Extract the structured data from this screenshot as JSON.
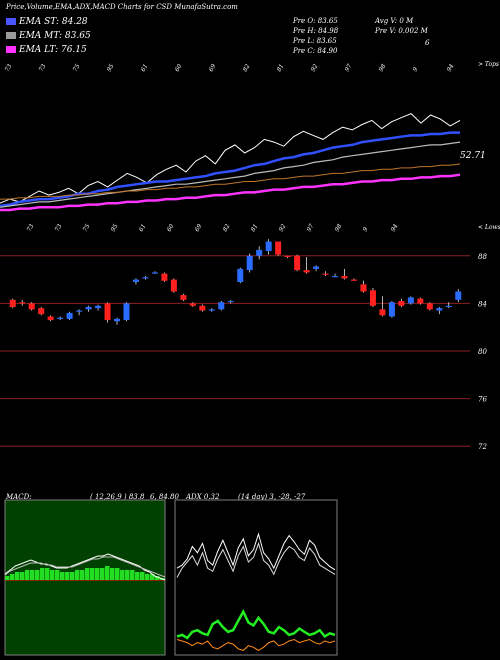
{
  "header": {
    "title": "Price,Volume,EMA,ADX,MACD Charts for CSD MunafaSutra.com",
    "ema_st": "EMA ST: 84.28",
    "ema_mt": "EMA MT: 83.65",
    "ema_lt": "EMA LT: 76.15",
    "pre_open": "Pre  O: 83.65",
    "pre_high": "Pre  H: 84.98",
    "pre_low": "Pre  L: 83.65",
    "pre_close": "Pre  C: 84.90",
    "avg_volume": "Avg V: 0  M",
    "pre_volume": "Pre  V: 0.002  M",
    "stray_mark": "6",
    "colors": {
      "ema_st": "#4a55ff",
      "ema_mt": "#9a9a9a",
      "ema_lt": "#ff33ff"
    }
  },
  "macd_panel": {
    "label": "MACD:",
    "params": "( 12,26,9 ) 83.8",
    "values": "6, 84.80",
    "adx_overlap": "ADX 0.32"
  },
  "adx_panel": {
    "label": "(14  day) 3,  -28,  -27"
  },
  "chart_data": [
    {
      "type": "line",
      "panel": "ema",
      "tag_top_right": "> Tops",
      "last_value_label": "52.71",
      "x_labels": [
        "73",
        "73",
        "75",
        "95",
        "61",
        "60",
        "69",
        "82",
        "81",
        "92",
        "97",
        "98",
        "9",
        "94"
      ],
      "series": [
        {
          "name": "EMA ST",
          "values": [
            3,
            4,
            6,
            7,
            8,
            8,
            9,
            10,
            12,
            12,
            14,
            15,
            17,
            18,
            19,
            20,
            21,
            21,
            22,
            23,
            24,
            25,
            27,
            28,
            29,
            31,
            33,
            34,
            36,
            38,
            39,
            41,
            42,
            44,
            46,
            47,
            48,
            50,
            51,
            52,
            53,
            54,
            55,
            55,
            56,
            56,
            57,
            57
          ]
        },
        {
          "name": "EMA MT",
          "values": [
            2,
            3,
            4,
            5,
            6,
            6,
            7,
            8,
            9,
            10,
            11,
            12,
            13,
            14,
            15,
            16,
            17,
            18,
            19,
            19,
            20,
            21,
            22,
            23,
            24,
            25,
            27,
            28,
            29,
            31,
            32,
            33,
            35,
            36,
            37,
            39,
            40,
            41,
            42,
            43,
            44,
            45,
            46,
            47,
            48,
            48,
            49,
            50
          ]
        },
        {
          "name": "EMA LT",
          "values": [
            0,
            0,
            1,
            1,
            2,
            2,
            2,
            3,
            3,
            4,
            4,
            5,
            5,
            6,
            6,
            7,
            7,
            8,
            8,
            9,
            9,
            10,
            11,
            11,
            12,
            13,
            13,
            14,
            15,
            15,
            16,
            17,
            17,
            18,
            19,
            19,
            20,
            21,
            21,
            22,
            22,
            23,
            23,
            24,
            24,
            25,
            25,
            26
          ]
        }
      ],
      "price": [
        5,
        8,
        6,
        10,
        14,
        11,
        13,
        16,
        12,
        18,
        21,
        17,
        22,
        27,
        24,
        20,
        26,
        30,
        33,
        28,
        36,
        40,
        34,
        44,
        48,
        42,
        46,
        52,
        50,
        47,
        54,
        58,
        55,
        52,
        57,
        61,
        59,
        63,
        66,
        60,
        65,
        68,
        71,
        64,
        70,
        67,
        62,
        66
      ]
    },
    {
      "type": "bar",
      "subtype": "candlestick",
      "panel": "price",
      "tag_top_right": "< Lows",
      "y_ticks": [
        88,
        84,
        80,
        76,
        72
      ],
      "ylim": [
        70,
        90
      ],
      "x_labels": [
        "73",
        "73",
        "75",
        "95",
        "61",
        "60",
        "69",
        "82",
        "81",
        "92",
        "97",
        "98",
        "9",
        "94"
      ],
      "candles": [
        {
          "o": 84.3,
          "h": 84.4,
          "l": 83.6,
          "c": 83.7
        },
        {
          "o": 84.1,
          "h": 84.3,
          "l": 83.8,
          "c": 84.0
        },
        {
          "o": 84.0,
          "h": 84.1,
          "l": 83.4,
          "c": 83.5
        },
        {
          "o": 83.6,
          "h": 83.7,
          "l": 83.0,
          "c": 83.1
        },
        {
          "o": 82.9,
          "h": 83.0,
          "l": 82.5,
          "c": 82.6
        },
        {
          "o": 82.7,
          "h": 82.9,
          "l": 82.6,
          "c": 82.8
        },
        {
          "o": 82.7,
          "h": 83.3,
          "l": 82.6,
          "c": 83.2
        },
        {
          "o": 83.3,
          "h": 83.5,
          "l": 83.0,
          "c": 83.4
        },
        {
          "o": 83.5,
          "h": 83.8,
          "l": 83.3,
          "c": 83.7
        },
        {
          "o": 83.6,
          "h": 83.9,
          "l": 83.4,
          "c": 83.8
        },
        {
          "o": 84.0,
          "h": 84.1,
          "l": 82.4,
          "c": 82.6
        },
        {
          "o": 82.5,
          "h": 82.8,
          "l": 82.2,
          "c": 82.7
        },
        {
          "o": 82.6,
          "h": 84.1,
          "l": 82.5,
          "c": 84.0
        },
        {
          "o": 85.8,
          "h": 86.1,
          "l": 85.6,
          "c": 86.0
        },
        {
          "o": 86.1,
          "h": 86.3,
          "l": 86.0,
          "c": 86.2
        },
        {
          "o": 86.6,
          "h": 86.7,
          "l": 86.5,
          "c": 86.6
        },
        {
          "o": 86.5,
          "h": 86.6,
          "l": 85.8,
          "c": 85.9
        },
        {
          "o": 86.0,
          "h": 86.1,
          "l": 84.9,
          "c": 85.0
        },
        {
          "o": 84.7,
          "h": 84.8,
          "l": 84.2,
          "c": 84.3
        },
        {
          "o": 84.0,
          "h": 84.1,
          "l": 83.7,
          "c": 83.8
        },
        {
          "o": 83.8,
          "h": 83.9,
          "l": 83.3,
          "c": 83.4
        },
        {
          "o": 83.4,
          "h": 83.6,
          "l": 83.3,
          "c": 83.5
        },
        {
          "o": 83.5,
          "h": 84.2,
          "l": 83.4,
          "c": 84.1
        },
        {
          "o": 84.1,
          "h": 84.3,
          "l": 84.0,
          "c": 84.2
        },
        {
          "o": 85.8,
          "h": 87.0,
          "l": 85.7,
          "c": 86.9
        },
        {
          "o": 86.8,
          "h": 88.2,
          "l": 86.6,
          "c": 88.0
        },
        {
          "o": 88.0,
          "h": 88.8,
          "l": 87.7,
          "c": 88.5
        },
        {
          "o": 88.4,
          "h": 89.4,
          "l": 88.1,
          "c": 89.2
        },
        {
          "o": 89.2,
          "h": 89.2,
          "l": 88.0,
          "c": 88.1
        },
        {
          "o": 88.0,
          "h": 88.0,
          "l": 87.8,
          "c": 87.9
        },
        {
          "o": 88.0,
          "h": 88.1,
          "l": 86.7,
          "c": 86.8
        },
        {
          "o": 86.8,
          "h": 87.9,
          "l": 86.5,
          "c": 86.6
        },
        {
          "o": 86.9,
          "h": 87.2,
          "l": 86.7,
          "c": 87.1
        },
        {
          "o": 86.5,
          "h": 86.7,
          "l": 86.3,
          "c": 86.4
        },
        {
          "o": 86.3,
          "h": 86.5,
          "l": 86.2,
          "c": 86.3
        },
        {
          "o": 86.3,
          "h": 86.9,
          "l": 86.0,
          "c": 86.1
        },
        {
          "o": 86.0,
          "h": 86.1,
          "l": 85.9,
          "c": 85.95
        },
        {
          "o": 85.6,
          "h": 85.9,
          "l": 84.9,
          "c": 85.0
        },
        {
          "o": 85.1,
          "h": 85.3,
          "l": 83.7,
          "c": 83.8
        },
        {
          "o": 83.5,
          "h": 84.6,
          "l": 82.9,
          "c": 83.0
        },
        {
          "o": 82.9,
          "h": 84.2,
          "l": 82.8,
          "c": 84.1
        },
        {
          "o": 84.2,
          "h": 84.4,
          "l": 83.7,
          "c": 83.8
        },
        {
          "o": 84.0,
          "h": 84.6,
          "l": 83.9,
          "c": 84.5
        },
        {
          "o": 84.4,
          "h": 84.5,
          "l": 83.9,
          "c": 84.0
        },
        {
          "o": 84.0,
          "h": 84.1,
          "l": 83.4,
          "c": 83.5
        },
        {
          "o": 83.4,
          "h": 83.7,
          "l": 83.1,
          "c": 83.6
        },
        {
          "o": 83.7,
          "h": 84.1,
          "l": 83.6,
          "c": 83.8
        },
        {
          "o": 84.3,
          "h": 85.2,
          "l": 84.1,
          "c": 85.0
        }
      ]
    },
    {
      "type": "area",
      "panel": "macd",
      "series": [
        {
          "name": "histogram",
          "values": [
            2,
            3,
            4,
            4,
            5,
            5,
            5,
            6,
            6,
            5,
            5,
            4,
            4,
            4,
            5,
            5,
            6,
            6,
            6,
            6,
            7,
            6,
            6,
            5,
            5,
            5,
            4,
            4,
            3,
            3,
            2,
            1
          ]
        },
        {
          "name": "macd",
          "values": [
            3,
            5,
            7,
            8,
            9,
            10,
            9,
            8,
            8,
            7,
            6,
            6,
            6,
            7,
            8,
            9,
            10,
            11,
            12,
            12,
            13,
            12,
            11,
            10,
            9,
            8,
            7,
            5,
            4,
            2,
            1,
            0
          ]
        },
        {
          "name": "signal",
          "values": [
            2,
            4,
            5,
            6,
            7,
            8,
            8,
            8,
            7,
            7,
            6,
            6,
            6,
            6,
            7,
            8,
            9,
            10,
            10,
            11,
            11,
            11,
            10,
            9,
            8,
            7,
            6,
            5,
            4,
            3,
            2,
            1
          ]
        }
      ]
    },
    {
      "type": "line",
      "panel": "adx",
      "series": [
        {
          "name": "line 1",
          "values": [
            56,
            58,
            62,
            70,
            66,
            72,
            61,
            58,
            67,
            74,
            66,
            58,
            69,
            75,
            64,
            68,
            78,
            66,
            62,
            56,
            64,
            72,
            77,
            73,
            68,
            65,
            74,
            71,
            63,
            60,
            57,
            55
          ]
        },
        {
          "name": "line 2",
          "values": [
            50,
            56,
            60,
            64,
            58,
            66,
            56,
            54,
            62,
            68,
            61,
            54,
            64,
            70,
            60,
            63,
            72,
            61,
            58,
            52,
            60,
            66,
            70,
            68,
            63,
            61,
            69,
            65,
            58,
            56,
            54,
            52
          ]
        },
        {
          "name": "line 3",
          "values": [
            12,
            13,
            11,
            15,
            16,
            14,
            13,
            20,
            22,
            18,
            15,
            16,
            22,
            28,
            21,
            19,
            24,
            20,
            15,
            14,
            18,
            16,
            13,
            14,
            17,
            15,
            13,
            14,
            16,
            12,
            14,
            13
          ]
        },
        {
          "name": "line 4",
          "values": [
            10,
            9,
            8,
            6,
            8,
            7,
            9,
            5,
            4,
            6,
            8,
            7,
            4,
            3,
            6,
            5,
            3,
            5,
            8,
            9,
            6,
            7,
            9,
            10,
            8,
            9,
            10,
            8,
            7,
            9,
            8,
            9
          ]
        }
      ]
    }
  ]
}
